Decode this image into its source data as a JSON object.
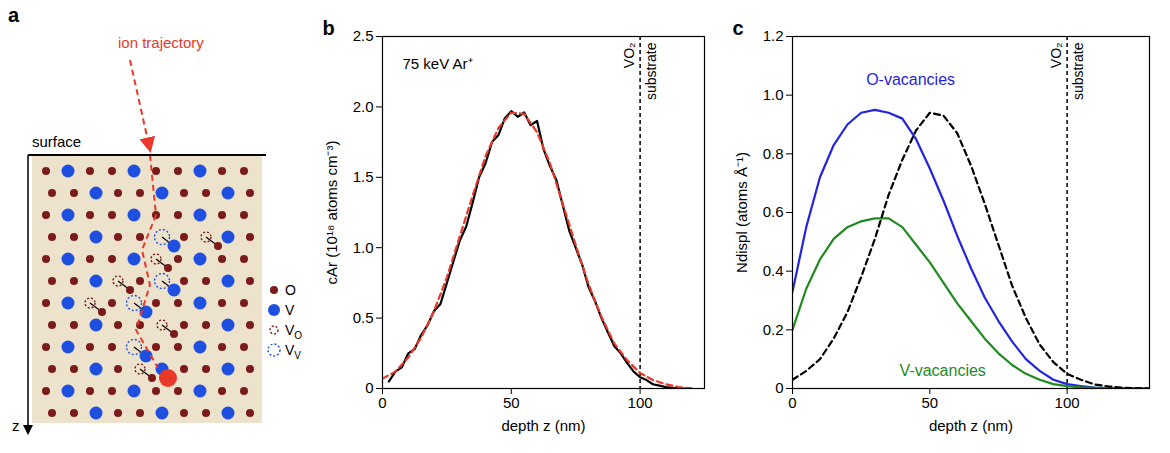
{
  "diagram": {
    "panel": "a",
    "trajectory_label": "ion trajectory",
    "surface_label": "surface",
    "axis_label": "z",
    "legend": [
      {
        "label": "O"
      },
      {
        "label": "V"
      },
      {
        "label": "V",
        "sub": "O"
      },
      {
        "label": "V",
        "sub": "V"
      }
    ]
  },
  "chart_data": [
    {
      "type": "line",
      "panel": "b",
      "x_label": "depth z (nm)",
      "y_label": "cAr (10¹⁸ atoms cm⁻³)",
      "annotations": [
        {
          "text": "75 keV Ar⁺"
        }
      ],
      "vline": {
        "x": 100,
        "labels": [
          "VO₂",
          "substrate"
        ]
      },
      "xlim": [
        0,
        125
      ],
      "xticks": [
        0,
        50,
        100
      ],
      "ylim": [
        0,
        2.5
      ],
      "yticks": [
        0,
        0.5,
        {
          "value": 1,
          "label": "1.0"
        },
        1.5,
        {
          "value": 2,
          "label": "2.0"
        },
        2.5
      ],
      "series": [
        {
          "color": "#000000",
          "line_style": "solid",
          "x": [
            2.5,
            5,
            7.5,
            10,
            12.5,
            15,
            17.5,
            20,
            22.5,
            25,
            27.5,
            30,
            32.5,
            35,
            37.5,
            40,
            42.5,
            45,
            47.5,
            50,
            52.5,
            55,
            57.5,
            60,
            62.5,
            65,
            67.5,
            70,
            72.5,
            75,
            77.5,
            80,
            82.5,
            85,
            87.5,
            90,
            92.5,
            95,
            97.5,
            100,
            102.5,
            105,
            107.5,
            110,
            115,
            120
          ],
          "values": [
            0.05,
            0.12,
            0.15,
            0.25,
            0.28,
            0.38,
            0.45,
            0.55,
            0.6,
            0.75,
            0.9,
            1.05,
            1.15,
            1.32,
            1.5,
            1.6,
            1.75,
            1.8,
            1.92,
            1.97,
            1.93,
            1.96,
            1.87,
            1.9,
            1.7,
            1.58,
            1.48,
            1.3,
            1.12,
            1.0,
            0.88,
            0.72,
            0.62,
            0.5,
            0.4,
            0.3,
            0.25,
            0.18,
            0.12,
            0.08,
            0.06,
            0.03,
            0.02,
            0.01,
            0,
            0
          ]
        },
        {
          "color": "#e8392a",
          "line_style": "dashed",
          "x": [
            0,
            5,
            10,
            15,
            20,
            25,
            30,
            35,
            40,
            45,
            50,
            55,
            60,
            65,
            70,
            75,
            80,
            85,
            90,
            95,
            100,
            105,
            110,
            115,
            120
          ],
          "values": [
            0.07,
            0.12,
            0.22,
            0.36,
            0.55,
            0.79,
            1.08,
            1.37,
            1.65,
            1.85,
            1.96,
            1.95,
            1.82,
            1.6,
            1.31,
            1.02,
            0.74,
            0.51,
            0.32,
            0.2,
            0.11,
            0.06,
            0.03,
            0.01,
            0
          ]
        }
      ]
    },
    {
      "type": "line",
      "panel": "c",
      "x_label": "depth z (nm)",
      "y_label": "Ndispl (atoms Å⁻¹)",
      "vline": {
        "x": 100,
        "labels": [
          "VO₂",
          "substrate"
        ]
      },
      "xlim": [
        0,
        130
      ],
      "xticks": [
        0,
        50,
        100
      ],
      "ylim": [
        0,
        1.2
      ],
      "yticks": [
        0,
        0.2,
        0.4,
        0.6,
        0.8,
        {
          "value": 1,
          "label": "1.0"
        },
        1.2
      ],
      "x": [
        0,
        5,
        10,
        15,
        20,
        25,
        30,
        35,
        40,
        45,
        50,
        55,
        60,
        65,
        70,
        75,
        80,
        85,
        90,
        95,
        100,
        105,
        110,
        115,
        120,
        125,
        130
      ],
      "series": [
        {
          "name": "O-vacancies",
          "color": "#2424e0",
          "line_style": "solid",
          "values": [
            0.33,
            0.55,
            0.72,
            0.83,
            0.9,
            0.94,
            0.95,
            0.94,
            0.92,
            0.85,
            0.75,
            0.64,
            0.52,
            0.41,
            0.31,
            0.23,
            0.16,
            0.1,
            0.06,
            0.03,
            0.015,
            0.008,
            0.003,
            0.001,
            0,
            0,
            0
          ]
        },
        {
          "name": "V-vacancies",
          "color": "#1f8a1f",
          "line_style": "solid",
          "values": [
            0.2,
            0.34,
            0.44,
            0.51,
            0.55,
            0.57,
            0.58,
            0.58,
            0.55,
            0.49,
            0.43,
            0.36,
            0.29,
            0.23,
            0.17,
            0.12,
            0.08,
            0.05,
            0.03,
            0.015,
            0.008,
            0.004,
            0.002,
            0.001,
            0,
            0,
            0
          ]
        },
        {
          "color": "#000000",
          "line_style": "dashed",
          "values": [
            0.03,
            0.06,
            0.1,
            0.17,
            0.26,
            0.38,
            0.51,
            0.66,
            0.78,
            0.88,
            0.94,
            0.93,
            0.87,
            0.76,
            0.63,
            0.49,
            0.35,
            0.24,
            0.15,
            0.09,
            0.05,
            0.03,
            0.014,
            0.007,
            0.003,
            0.001,
            0
          ]
        }
      ]
    }
  ]
}
